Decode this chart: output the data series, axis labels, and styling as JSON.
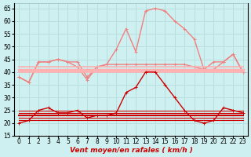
{
  "x": [
    0,
    1,
    2,
    3,
    4,
    5,
    6,
    7,
    8,
    9,
    10,
    11,
    12,
    13,
    14,
    15,
    16,
    17,
    18,
    19,
    20,
    21,
    22,
    23
  ],
  "series": [
    {
      "name": "rafales_peak",
      "color": "#f08080",
      "linewidth": 1.0,
      "marker": "+",
      "markersize": 3,
      "values": [
        38,
        36,
        44,
        44,
        45,
        44,
        42,
        37,
        42,
        43,
        49,
        57,
        48,
        64,
        65,
        64,
        60,
        57,
        53,
        41,
        41,
        44,
        47,
        40
      ]
    },
    {
      "name": "rafales_flat",
      "color": "#f08080",
      "linewidth": 1.0,
      "marker": "+",
      "markersize": 3,
      "values": [
        38,
        36,
        44,
        44,
        45,
        44,
        44,
        38,
        42,
        43,
        43,
        43,
        43,
        43,
        43,
        43,
        43,
        43,
        42,
        41,
        44,
        44,
        47,
        40
      ]
    },
    {
      "name": "band_top",
      "color": "#ffb0b0",
      "linewidth": 1.2,
      "marker": "None",
      "markersize": 0,
      "values": [
        42,
        42,
        42,
        42,
        42,
        42,
        42,
        42,
        42,
        42,
        42,
        42,
        42,
        42,
        42,
        42,
        42,
        42,
        42,
        42,
        42,
        42,
        42,
        42
      ]
    },
    {
      "name": "band_mid",
      "color": "#ffb0b0",
      "linewidth": 2.5,
      "marker": "None",
      "markersize": 0,
      "values": [
        41,
        41,
        41,
        41,
        41,
        41,
        41,
        41,
        41,
        41,
        41,
        41,
        41,
        41,
        41,
        41,
        41,
        41,
        41,
        41,
        41,
        41,
        41,
        41
      ]
    },
    {
      "name": "band_bot",
      "color": "#ffb0b0",
      "linewidth": 1.2,
      "marker": "None",
      "markersize": 0,
      "values": [
        40,
        40,
        40,
        40,
        40,
        40,
        40,
        40,
        40,
        40,
        40,
        40,
        40,
        40,
        40,
        40,
        40,
        40,
        40,
        40,
        40,
        40,
        40,
        40
      ]
    },
    {
      "name": "vent_peak",
      "color": "#cc0000",
      "linewidth": 1.0,
      "marker": "+",
      "markersize": 3,
      "values": [
        20,
        21,
        25,
        26,
        24,
        24,
        25,
        22,
        23,
        23,
        24,
        32,
        34,
        40,
        40,
        35,
        30,
        25,
        21,
        20,
        21,
        26,
        25,
        24
      ]
    },
    {
      "name": "vent_flat1",
      "color": "#cc0000",
      "linewidth": 0.8,
      "marker": "None",
      "markersize": 0,
      "values": [
        21,
        21,
        21,
        21,
        21,
        21,
        21,
        21,
        21,
        21,
        21,
        21,
        21,
        21,
        21,
        21,
        21,
        21,
        21,
        21,
        21,
        21,
        21,
        21
      ]
    },
    {
      "name": "vent_flat2",
      "color": "#cc0000",
      "linewidth": 0.8,
      "marker": "None",
      "markersize": 0,
      "values": [
        22,
        22,
        22,
        22,
        22,
        22,
        22,
        22,
        22,
        22,
        22,
        22,
        22,
        22,
        22,
        22,
        22,
        22,
        22,
        22,
        22,
        22,
        22,
        22
      ]
    },
    {
      "name": "vent_flat3",
      "color": "#cc0000",
      "linewidth": 1.5,
      "marker": "None",
      "markersize": 0,
      "values": [
        23,
        23,
        23,
        23,
        23,
        23,
        23,
        23,
        23,
        23,
        23,
        23,
        23,
        23,
        23,
        23,
        23,
        23,
        23,
        23,
        23,
        23,
        23,
        23
      ]
    },
    {
      "name": "vent_flat4",
      "color": "#cc0000",
      "linewidth": 0.8,
      "marker": "None",
      "markersize": 0,
      "values": [
        24,
        24,
        24,
        24,
        24,
        24,
        24,
        24,
        24,
        24,
        24,
        24,
        24,
        24,
        24,
        24,
        24,
        24,
        24,
        24,
        24,
        24,
        24,
        24
      ]
    },
    {
      "name": "vent_flat5",
      "color": "#cc0000",
      "linewidth": 0.8,
      "marker": "None",
      "markersize": 0,
      "values": [
        25,
        25,
        25,
        25,
        25,
        25,
        25,
        25,
        25,
        25,
        25,
        25,
        25,
        25,
        25,
        25,
        25,
        25,
        25,
        25,
        25,
        25,
        25,
        25
      ]
    }
  ],
  "ylim": [
    15,
    67
  ],
  "yticks": [
    15,
    20,
    25,
    30,
    35,
    40,
    45,
    50,
    55,
    60,
    65
  ],
  "xlabel": "Vent moyen/en rafales ( km/h )",
  "xlabel_color": "#cc0000",
  "xlabel_fontsize": 6.5,
  "background_color": "#cff0f0",
  "grid_color": "#b8dede",
  "tick_fontsize": 5.5
}
